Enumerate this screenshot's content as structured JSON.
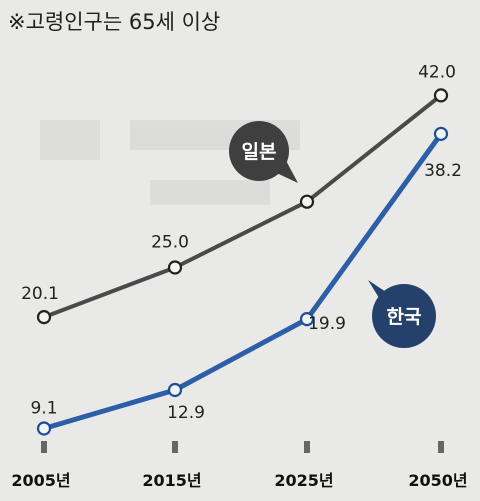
{
  "note": "※고령인구는 65세 이상",
  "chart_data": {
    "type": "line",
    "categories": [
      "2005년",
      "2015년",
      "2025년",
      "2050년"
    ],
    "series": [
      {
        "name": "일본",
        "values": [
          20.1,
          25.0,
          31.5,
          42.0
        ],
        "value_labels": [
          "20.1",
          "25.0",
          "",
          "42.0"
        ],
        "color": "#4a4a4a"
      },
      {
        "name": "한국",
        "values": [
          9.1,
          12.9,
          19.9,
          38.2
        ],
        "value_labels": [
          "9.1",
          "12.9",
          "19.9",
          "38.2"
        ],
        "color": "#2d5fa8"
      }
    ],
    "ylim": [
      5,
      45
    ]
  },
  "colors": {
    "japan_bubble": "#3f3f3f",
    "korea_bubble": "#23416b",
    "background": "#e9e9e7"
  }
}
